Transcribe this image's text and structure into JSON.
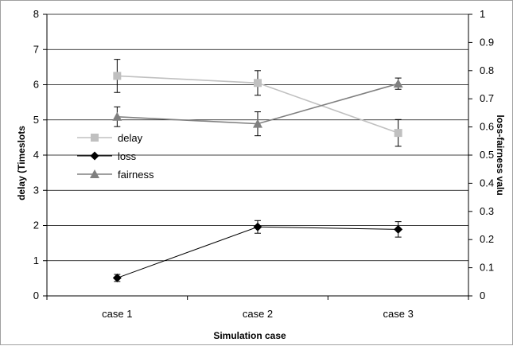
{
  "chart_data": {
    "type": "line",
    "title": "",
    "xlabel": "Simulation case",
    "ylabel_left": "delay (Timeslots",
    "ylabel_right": "loss-fairness valu",
    "categories": [
      "case 1",
      "case 2",
      "case 3"
    ],
    "ylim_left": [
      0,
      8
    ],
    "ylim_right": [
      0,
      1
    ],
    "yticks_left": [
      "0",
      "1",
      "2",
      "3",
      "4",
      "5",
      "6",
      "7",
      "8"
    ],
    "yticks_right": [
      "0",
      "0.1",
      "0.2",
      "0.3",
      "0.4",
      "0.5",
      "0.6",
      "0.7",
      "0.8",
      "0.9",
      "1"
    ],
    "grid": true,
    "legend_position": "left-middle",
    "series": [
      {
        "name": "delay",
        "axis": "left",
        "marker": "square",
        "color": "#c0c0c0",
        "values": [
          6.25,
          6.05,
          4.63
        ],
        "err": [
          0.47,
          0.35,
          0.38
        ]
      },
      {
        "name": "loss",
        "axis": "left",
        "marker": "diamond",
        "color": "#000000",
        "values": [
          0.51,
          1.96,
          1.89
        ],
        "err": [
          0.1,
          0.18,
          0.22
        ]
      },
      {
        "name": "fairness",
        "axis": "left",
        "marker": "triangle",
        "color": "#808080",
        "values": [
          5.09,
          4.89,
          6.03
        ],
        "err": [
          0.28,
          0.34,
          0.16
        ]
      }
    ]
  }
}
